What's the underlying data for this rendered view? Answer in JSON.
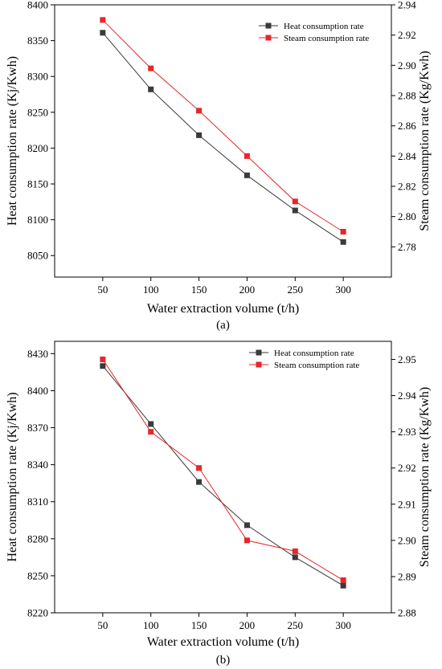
{
  "chart_data": [
    {
      "type": "line",
      "panel_label": "(a)",
      "xlabel": "Water extraction volume (t/h)",
      "ylabel_left": "Heat consumption rate (Kj/Kwh)",
      "ylabel_right": "Steam consumption rate (Kg/Kwh)",
      "x": [
        50,
        100,
        150,
        200,
        250,
        300
      ],
      "x_ticks": [
        "50",
        "100",
        "150",
        "200",
        "250",
        "300"
      ],
      "xlim": [
        0,
        350
      ],
      "ylim_left": [
        8020,
        8400
      ],
      "ylim_right": [
        2.76,
        2.94
      ],
      "y_ticks_left": [
        "8050",
        "8100",
        "8150",
        "8200",
        "8250",
        "8300",
        "8350",
        "8400"
      ],
      "y_ticks_right": [
        "2.78",
        "2.80",
        "2.82",
        "2.84",
        "2.86",
        "2.88",
        "2.90",
        "2.92",
        "2.94"
      ],
      "legend_position": "top-right",
      "series": [
        {
          "name": "Heat consumption rate",
          "axis": "left",
          "color": "#3a3a3a",
          "values": [
            8361,
            8282,
            8218,
            8162,
            8113,
            8069
          ]
        },
        {
          "name": "Steam consumption rate",
          "axis": "right",
          "color": "#e8262a",
          "values": [
            2.93,
            2.898,
            2.87,
            2.84,
            2.81,
            2.79
          ]
        }
      ]
    },
    {
      "type": "line",
      "panel_label": "(b)",
      "xlabel": "Water extraction volume (t/h)",
      "ylabel_left": "Heat consumption rate (Kj/Kwh)",
      "ylabel_right": "Steam consumption rate (Kg/Kwh)",
      "x": [
        50,
        100,
        150,
        200,
        250,
        300
      ],
      "x_ticks": [
        "50",
        "100",
        "150",
        "200",
        "250",
        "300"
      ],
      "xlim": [
        0,
        350
      ],
      "ylim_left": [
        8220,
        8440
      ],
      "ylim_right": [
        2.88,
        2.955
      ],
      "y_ticks_left": [
        "8220",
        "8250",
        "8280",
        "8310",
        "8340",
        "8370",
        "8400",
        "8430"
      ],
      "y_ticks_right": [
        "2.88",
        "2.89",
        "2.90",
        "2.91",
        "2.92",
        "2.93",
        "2.94",
        "2.95"
      ],
      "legend_position": "top-right",
      "series": [
        {
          "name": "Heat consumption rate",
          "axis": "left",
          "color": "#3a3a3a",
          "values": [
            8420,
            8373,
            8326,
            8291,
            8265,
            8242
          ]
        },
        {
          "name": "Steam consumption rate",
          "axis": "right",
          "color": "#e8262a",
          "values": [
            2.95,
            2.93,
            2.92,
            2.9,
            2.897,
            2.889
          ]
        }
      ]
    }
  ]
}
